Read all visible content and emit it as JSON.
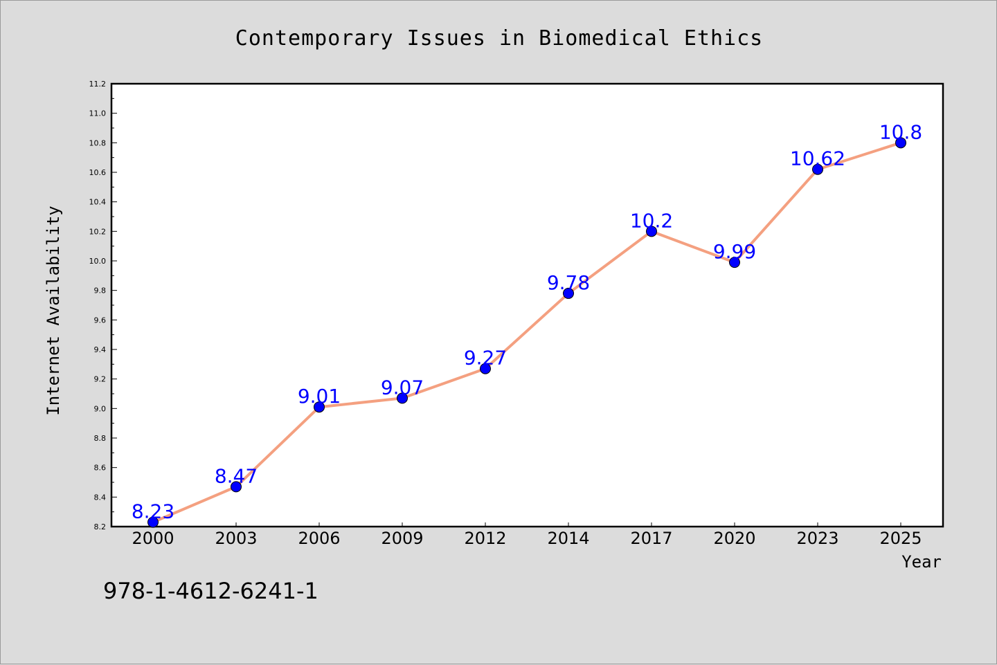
{
  "chart_data": {
    "type": "line",
    "title": "Contemporary Issues in Biomedical Ethics",
    "xlabel": "Year",
    "ylabel": "Internet Availability",
    "categories": [
      "2000",
      "2003",
      "2006",
      "2009",
      "2012",
      "2014",
      "2017",
      "2020",
      "2023",
      "2025"
    ],
    "series": [
      {
        "values": [
          8.23,
          8.47,
          9.01,
          9.07,
          9.27,
          9.78,
          10.2,
          9.99,
          10.62,
          10.8
        ]
      }
    ],
    "data_labels": [
      "8.23",
      "8.47",
      "9.01",
      "9.07",
      "9.27",
      "9.78",
      "10.2",
      "9.99",
      "10.62",
      "10.8"
    ],
    "ylim": [
      8.2,
      11.2
    ],
    "yticks": [
      "8.2",
      "8.4",
      "8.6",
      "8.8",
      "9.0",
      "9.2",
      "9.4",
      "9.6",
      "9.8",
      "10.0",
      "10.2",
      "10.4",
      "10.6",
      "10.8",
      "11.0",
      "11.2"
    ],
    "grid": false,
    "line_color": "#f4a080",
    "marker_color": "#0000ff"
  },
  "footer": {
    "isbn": "978-1-4612-6241-1"
  }
}
